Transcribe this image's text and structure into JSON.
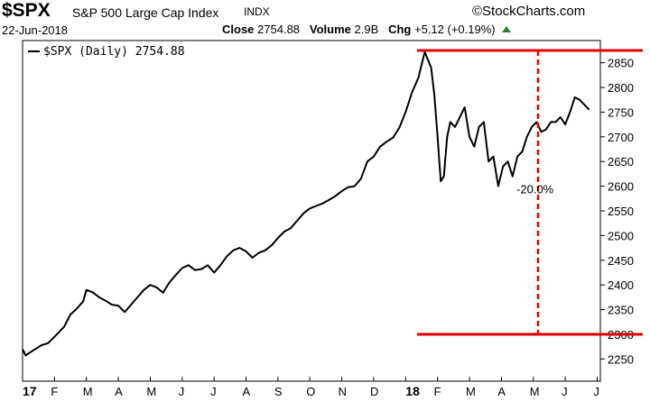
{
  "header": {
    "ticker": "$SPX",
    "index_name": "S&P 500 Large Cap Index",
    "exchange": "INDX",
    "brand": "©StockCharts.com",
    "date": "22-Jun-2018",
    "close_label": "Close",
    "close_value": "2754.88",
    "volume_label": "Volume",
    "volume_value": "2.9B",
    "chg_label": "Chg",
    "chg_value": "+5.12 (+0.19%)"
  },
  "colors": {
    "line": "#000000",
    "annotation": "#e00000",
    "up_arrow": "#2e7d32"
  },
  "chart_data": {
    "type": "line",
    "legend_text": "$SPX (Daily) 2754.88",
    "legend_position": "top-left",
    "ylim": [
      2205,
      2895
    ],
    "y_ticks": [
      2250,
      2300,
      2350,
      2400,
      2450,
      2500,
      2550,
      2600,
      2650,
      2700,
      2750,
      2800,
      2850
    ],
    "x_ticks": [
      {
        "label": "17",
        "pos": 0,
        "year": true
      },
      {
        "label": "F",
        "pos": 1
      },
      {
        "label": "M",
        "pos": 2
      },
      {
        "label": "A",
        "pos": 3
      },
      {
        "label": "M",
        "pos": 4
      },
      {
        "label": "J",
        "pos": 5
      },
      {
        "label": "J",
        "pos": 6
      },
      {
        "label": "A",
        "pos": 7
      },
      {
        "label": "S",
        "pos": 8
      },
      {
        "label": "O",
        "pos": 9
      },
      {
        "label": "N",
        "pos": 10
      },
      {
        "label": "D",
        "pos": 11
      },
      {
        "label": "18",
        "pos": 12,
        "year": true
      },
      {
        "label": "F",
        "pos": 13
      },
      {
        "label": "M",
        "pos": 14
      },
      {
        "label": "A",
        "pos": 15
      },
      {
        "label": "M",
        "pos": 16
      },
      {
        "label": "J",
        "pos": 17
      },
      {
        "label": "J",
        "pos": 18
      }
    ],
    "x_range": [
      0,
      18.1
    ],
    "series": [
      {
        "x": [
          0,
          0.1,
          0.2,
          0.4,
          0.6,
          0.8,
          1.0,
          1.3,
          1.5,
          1.7,
          1.9,
          2.0,
          2.2,
          2.4,
          2.6,
          2.8,
          3.0,
          3.2,
          3.4,
          3.6,
          3.8,
          4.0,
          4.2,
          4.4,
          4.6,
          4.8,
          5.0,
          5.2,
          5.4,
          5.6,
          5.8,
          6.0,
          6.2,
          6.4,
          6.6,
          6.8,
          7.0,
          7.2,
          7.4,
          7.6,
          7.8,
          8.0,
          8.2,
          8.4,
          8.6,
          8.8,
          9.0,
          9.2,
          9.4,
          9.6,
          9.8,
          10.0,
          10.2,
          10.4,
          10.6,
          10.8,
          11.0,
          11.2,
          11.4,
          11.6,
          11.8,
          12.0,
          12.2,
          12.4,
          12.6,
          12.8,
          12.9,
          13.0,
          13.1,
          13.2,
          13.3,
          13.4,
          13.55,
          13.7,
          13.85,
          14.0,
          14.15,
          14.3,
          14.45,
          14.6,
          14.75,
          14.9,
          15.05,
          15.2,
          15.35,
          15.5,
          15.65,
          15.8,
          15.95,
          16.1,
          16.25,
          16.4,
          16.55,
          16.7,
          16.85,
          17.0,
          17.15,
          17.3,
          17.45,
          17.6,
          17.75
        ],
        "values": [
          2270,
          2257,
          2262,
          2270,
          2278,
          2282,
          2295,
          2315,
          2340,
          2352,
          2367,
          2390,
          2385,
          2375,
          2368,
          2360,
          2358,
          2345,
          2360,
          2375,
          2390,
          2400,
          2395,
          2384,
          2405,
          2420,
          2434,
          2440,
          2430,
          2432,
          2440,
          2425,
          2440,
          2458,
          2470,
          2475,
          2468,
          2455,
          2465,
          2470,
          2480,
          2495,
          2508,
          2515,
          2530,
          2545,
          2555,
          2560,
          2565,
          2572,
          2580,
          2590,
          2598,
          2600,
          2615,
          2650,
          2660,
          2680,
          2690,
          2698,
          2718,
          2750,
          2790,
          2820,
          2872,
          2840,
          2785,
          2700,
          2610,
          2620,
          2700,
          2730,
          2720,
          2740,
          2760,
          2700,
          2680,
          2720,
          2730,
          2650,
          2660,
          2600,
          2640,
          2650,
          2620,
          2660,
          2670,
          2700,
          2720,
          2730,
          2710,
          2715,
          2730,
          2730,
          2740,
          2725,
          2750,
          2780,
          2775,
          2765,
          2755
        ]
      }
    ],
    "annotations": {
      "top_level": 2875,
      "bottom_level": 2300,
      "vline_x": 16.15,
      "label": "-20.0%",
      "label_value": 2595
    }
  }
}
